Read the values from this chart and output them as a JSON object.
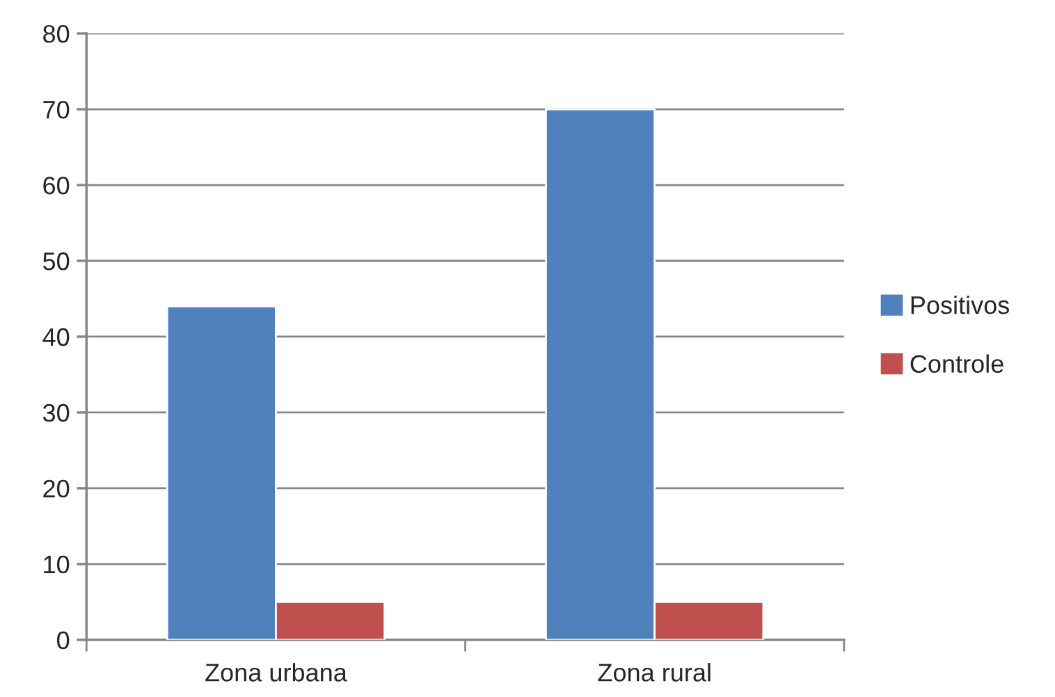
{
  "chart_data": {
    "type": "bar",
    "categories": [
      "Zona urbana",
      "Zona rural"
    ],
    "series": [
      {
        "name": "Positivos",
        "color": "#4f81bd",
        "values": [
          44,
          70
        ]
      },
      {
        "name": "Controle",
        "color": "#c0504d",
        "values": [
          5,
          5
        ]
      }
    ],
    "ylim": [
      0,
      80
    ],
    "yticks": [
      0,
      10,
      20,
      30,
      40,
      50,
      60,
      70,
      80
    ],
    "grid": "y",
    "legend": "right"
  }
}
